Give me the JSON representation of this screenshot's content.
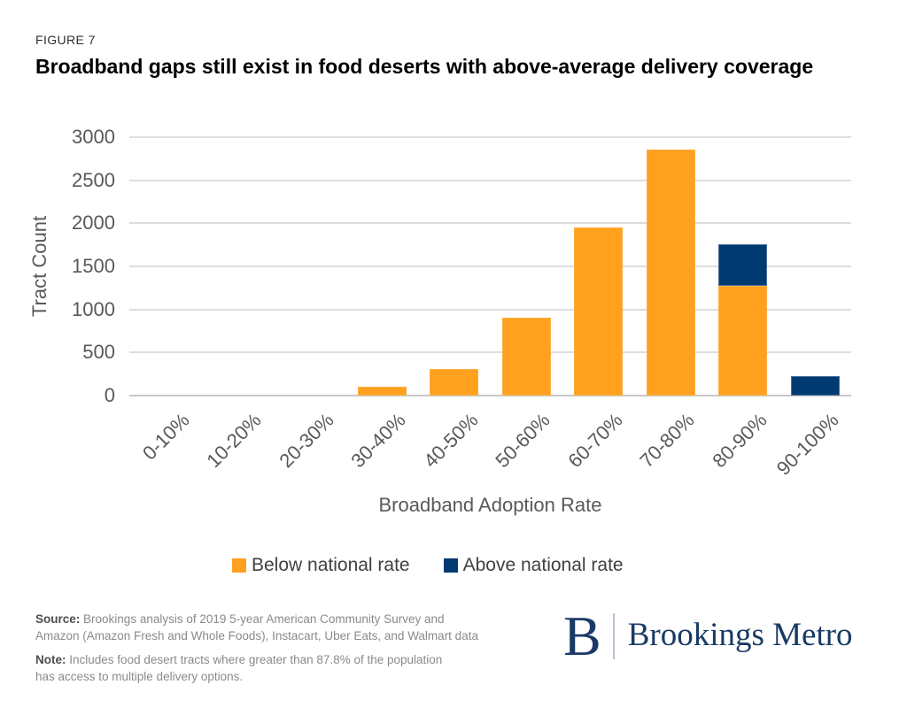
{
  "figure_label": "FIGURE 7",
  "title": "Broadband gaps still exist in food deserts with above-average delivery coverage",
  "chart_data": {
    "type": "bar",
    "stacked": true,
    "title": "Broadband gaps still exist in food deserts with above-average delivery coverage",
    "xlabel": "Broadband Adoption Rate",
    "ylabel": "Tract Count",
    "ylim": [
      0,
      3000
    ],
    "yticks": [
      0,
      500,
      1000,
      1500,
      2000,
      2500,
      3000
    ],
    "grid": true,
    "legend_position": "bottom",
    "categories": [
      "0-10%",
      "10-20%",
      "20-30%",
      "30-40%",
      "40-50%",
      "50-60%",
      "60-70%",
      "70-80%",
      "80-90%",
      "90-100%"
    ],
    "series": [
      {
        "name": "Below national rate",
        "color": "#FFA01E",
        "border_color": "#FFAE42",
        "values": [
          0,
          0,
          0,
          100,
          305,
          900,
          1955,
          2855,
          1270,
          0
        ]
      },
      {
        "name": "Above national rate",
        "color": "#003A70",
        "border_color": "#4A6F99",
        "values": [
          0,
          0,
          0,
          0,
          0,
          0,
          0,
          0,
          485,
          230
        ]
      }
    ]
  },
  "footer": {
    "source_label": "Source:",
    "source_lines": [
      "Brookings analysis of 2019 5-year American Community Survey and",
      "Amazon (Amazon Fresh and Whole Foods), Instacart, Uber Eats, and Walmart data"
    ],
    "note_label": "Note:",
    "note_lines": [
      "Includes food desert tracts where greater than 87.8% of the population",
      "has access to multiple delivery options."
    ]
  },
  "logo": {
    "initial": "B",
    "name": "Brookings Metro",
    "color": "#1a3a66"
  }
}
